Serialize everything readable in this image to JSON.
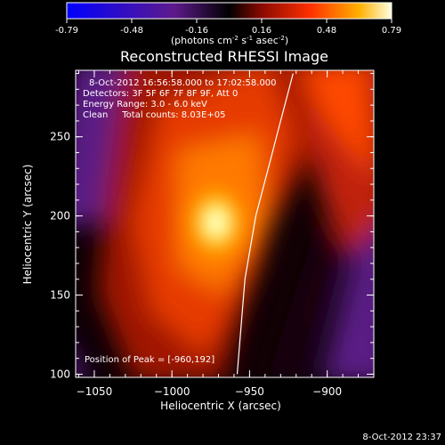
{
  "colorbar": {
    "ticks": [
      "-0.79",
      "-0.48",
      "-0.16",
      "0.16",
      "0.48",
      "0.79"
    ],
    "label_prefix": "(photons cm",
    "label_exp1": "-2",
    "label_mid": " s",
    "label_exp2": "-1",
    "label_mid2": " asec",
    "label_exp3": "-2",
    "label_suffix": ")"
  },
  "title": "Reconstructed RHESSI Image",
  "info": {
    "time_range": "8-Oct-2012 16:56:58.000 to 17:02:58.000",
    "detectors": "Detectors: 3F 5F 6F 7F 8F 9F, Att 0",
    "energy": "Energy Range: 3.0 - 6.0 keV",
    "clean": "Clean     Total counts: 8.03E+05",
    "peak": "Position of Peak = [-960,192]"
  },
  "footer_timestamp": "8-Oct-2012 23:37",
  "chart_data": {
    "type": "heatmap",
    "title": "Reconstructed RHESSI Image",
    "xlabel": "Heliocentric X (arcsec)",
    "ylabel": "Heliocentric Y (arcsec)",
    "xlim": [
      -1062,
      -870
    ],
    "ylim": [
      98,
      292
    ],
    "xticks": [
      -1050,
      -1000,
      -950,
      -900
    ],
    "yticks": [
      100,
      150,
      200,
      250
    ],
    "colorbar_range": [
      -0.79,
      0.79
    ],
    "colormap": [
      "#0000ff",
      "#6a1b9a",
      "#000000",
      "#8b0000",
      "#ff2a00",
      "#ffa000",
      "#ffff99",
      "#ffffff"
    ],
    "peak": {
      "x": -960,
      "y": 192
    },
    "limb_curve": {
      "x": [
        -958,
        -953,
        -946,
        -938,
        -930,
        -922
      ],
      "y": [
        100,
        160,
        200,
        230,
        260,
        290
      ]
    }
  }
}
